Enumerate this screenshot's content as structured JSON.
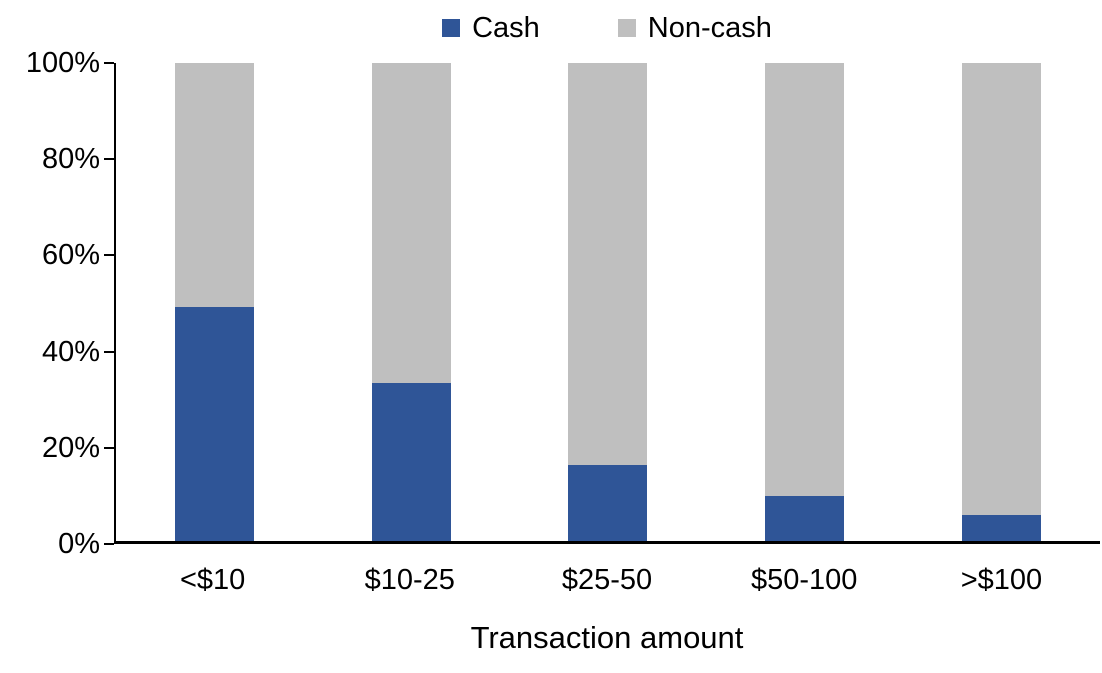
{
  "chart_data": {
    "type": "bar",
    "stacked": true,
    "percent_stacked": true,
    "title": "",
    "xlabel": "Transaction amount",
    "ylabel": "",
    "ylim": [
      0,
      100
    ],
    "grid": false,
    "legend_position": "top-center",
    "categories": [
      "<$10",
      "$10-25",
      "$25-50",
      "$50-100",
      ">$100"
    ],
    "series": [
      {
        "name": "Cash",
        "color": "#2F5597",
        "values": [
          49,
          33,
          16,
          9.5,
          5.5
        ]
      },
      {
        "name": "Non-cash",
        "color": "#BFBFBF",
        "values": [
          51,
          67,
          84,
          90.5,
          94.5
        ]
      }
    ],
    "yticks": [
      {
        "label": "0%",
        "value": 0
      },
      {
        "label": "20%",
        "value": 20
      },
      {
        "label": "40%",
        "value": 40
      },
      {
        "label": "60%",
        "value": 60
      },
      {
        "label": "80%",
        "value": 80
      },
      {
        "label": "100%",
        "value": 100
      }
    ],
    "colors": {
      "cash": "#2F5597",
      "noncash": "#BFBFBF",
      "axis": "#000000",
      "background": "#FFFFFF"
    }
  }
}
